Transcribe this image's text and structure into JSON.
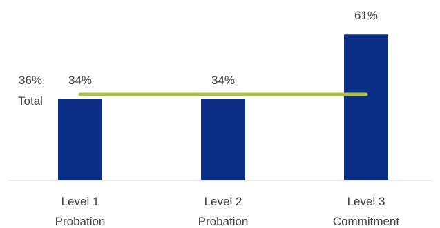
{
  "chart_data": {
    "type": "bar",
    "categories": [
      [
        "Level 1",
        "Probation"
      ],
      [
        "Level 2",
        "Probation"
      ],
      [
        "Level 3",
        "Commitment"
      ]
    ],
    "values": [
      34,
      34,
      61
    ],
    "value_labels": [
      "34%",
      "34%",
      "61%"
    ],
    "unit": "%",
    "bar_color": "#0b2f86",
    "ylim": [
      0,
      70
    ],
    "grid": false,
    "reference_line": {
      "label_value": "36%",
      "label_text": "Total",
      "value": 36,
      "color": "#a9c23f"
    }
  }
}
